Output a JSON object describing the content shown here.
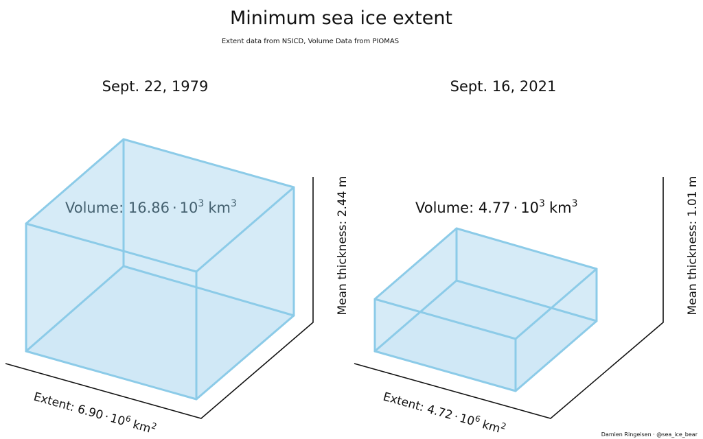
{
  "chart_data": {
    "type": "3d-box",
    "title": "Minimum sea ice extent",
    "subtitle": "Extent data from NSICD, Volume Data from PIOMAS",
    "credit": "Damien Ringeisen · @sea_ice_bear",
    "panels": [
      {
        "date": "Sept. 22, 1979",
        "extent_label": "Extent: 6.90",
        "extent_unit": "km",
        "extent_value": 6.9,
        "thickness_label": "Mean thickness: 2.44 m",
        "thickness_value": 2.44,
        "volume_label": "Volume: 16.86",
        "volume_unit": "km",
        "volume_value": 16.86
      },
      {
        "date": "Sept. 16, 2021",
        "extent_label": "Extent: 4.72",
        "extent_unit": "km",
        "extent_value": 4.72,
        "thickness_label": "Mean thickness: 1.01 m",
        "thickness_value": 1.01,
        "volume_label": "Volume: 4.77",
        "volume_unit": "km",
        "volume_value": 4.77
      }
    ]
  }
}
